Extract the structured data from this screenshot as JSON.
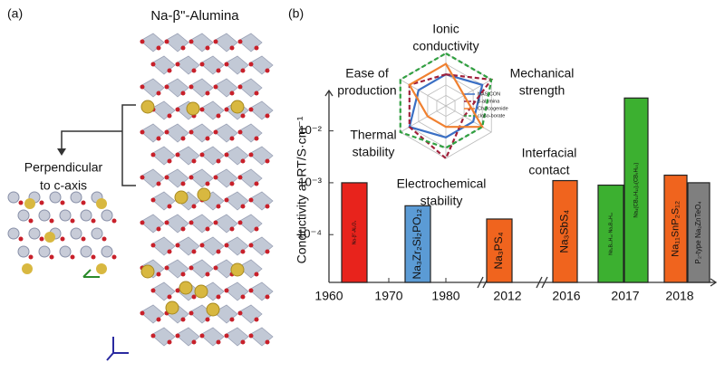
{
  "panel_a": {
    "label": "(a)",
    "title": "Na-β\"-Alumina",
    "caption": [
      "Perpendicular",
      "to c-axis"
    ]
  },
  "chart_data": [
    {
      "type": "bar",
      "label": "(b)",
      "ylabel": "Conductivity at RT/S·cm⁻¹",
      "log_scale": true,
      "ylim": [
        1.2e-05,
        0.06
      ],
      "yticks": [
        {
          "value": 0.0001,
          "label": "10⁻⁴"
        },
        {
          "value": 0.001,
          "label": "10⁻³"
        },
        {
          "value": 0.01,
          "label": "10⁻²"
        }
      ],
      "xticks": [
        1960,
        1970,
        1980,
        2012,
        2016,
        2017,
        2018
      ],
      "categories": [
        "Na-β\"-Al₂O₃",
        "Na₃Zr₂Si₂PO₁₂",
        "Na₃PS₄",
        "Na₃SbS₄",
        "Na₂B₁₀H₁₀·Na₂B₁₂H₁₂",
        "Na₄(CB₁₁H₁₂)₂(CB₉H₁₀)",
        "Na₁₁SnP₂S₁₂",
        "P₂-type Na₂ZnTeO₄"
      ],
      "values": [
        0.001,
        0.00036,
        0.0002,
        0.0011,
        0.0009,
        0.043,
        0.0014,
        0.001
      ],
      "colors": [
        "#e8231c",
        "#5b9bd5",
        "#f0641e",
        "#f0641e",
        "#3cb030",
        "#3cb030",
        "#f0641e",
        "#7f7f7f"
      ]
    },
    {
      "type": "radar",
      "axes": [
        [
          "Ionic",
          "conductivity"
        ],
        [
          "Mechanical",
          "strength"
        ],
        [
          "Interfacial",
          "contact"
        ],
        [
          "Electrochemical",
          "stability"
        ],
        [
          "Thermal",
          "stability"
        ],
        [
          "Ease of",
          "production"
        ]
      ],
      "rlim": [
        0,
        5
      ],
      "rticks": [
        1,
        2,
        3,
        4,
        5
      ],
      "series": [
        {
          "name": "NASICON",
          "color": "#3a6fc4",
          "dashed": false,
          "values": [
            3,
            4,
            3,
            3,
            4,
            3
          ]
        },
        {
          "name": "β-alumina",
          "color": "#a0203a",
          "dashed": true,
          "values": [
            3,
            5,
            2,
            5,
            4,
            4
          ]
        },
        {
          "name": "Chalcogenide",
          "color": "#f08030",
          "dashed": false,
          "values": [
            4,
            2,
            4,
            2,
            2,
            4
          ]
        },
        {
          "name": "closo-borate",
          "color": "#30a040",
          "dashed": true,
          "values": [
            5,
            5,
            4,
            4,
            5,
            5
          ]
        }
      ]
    }
  ]
}
